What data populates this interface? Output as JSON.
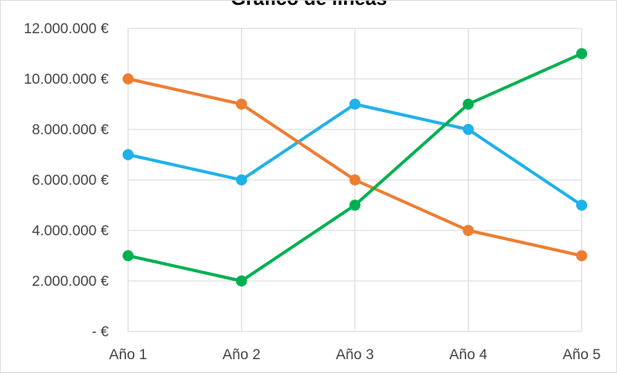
{
  "chart_data": {
    "type": "line",
    "title": "Gráfico de líneas",
    "xlabel": "",
    "ylabel": "",
    "categories": [
      "Año 1",
      "Año 2",
      "Año 3",
      "Año 4",
      "Año 5"
    ],
    "ylim": [
      0,
      12000000
    ],
    "yticks": [
      0,
      2000000,
      4000000,
      6000000,
      8000000,
      10000000,
      12000000
    ],
    "ytick_labels": [
      "-   €",
      "2.000.000 €",
      "4.000.000 €",
      "6.000.000 €",
      "8.000.000 €",
      "10.000.000 €",
      "12.000.000 €"
    ],
    "grid": true,
    "legend": "none",
    "series": [
      {
        "values": [
          7000000,
          6000000,
          9000000,
          8000000,
          5000000
        ],
        "color": "#1fb1ea"
      },
      {
        "values": [
          10000000,
          9000000,
          6000000,
          4000000,
          3000000
        ],
        "color": "#ed7d31"
      },
      {
        "values": [
          3000000,
          2000000,
          5000000,
          9000000,
          11000000
        ],
        "color": "#00b050"
      }
    ]
  }
}
